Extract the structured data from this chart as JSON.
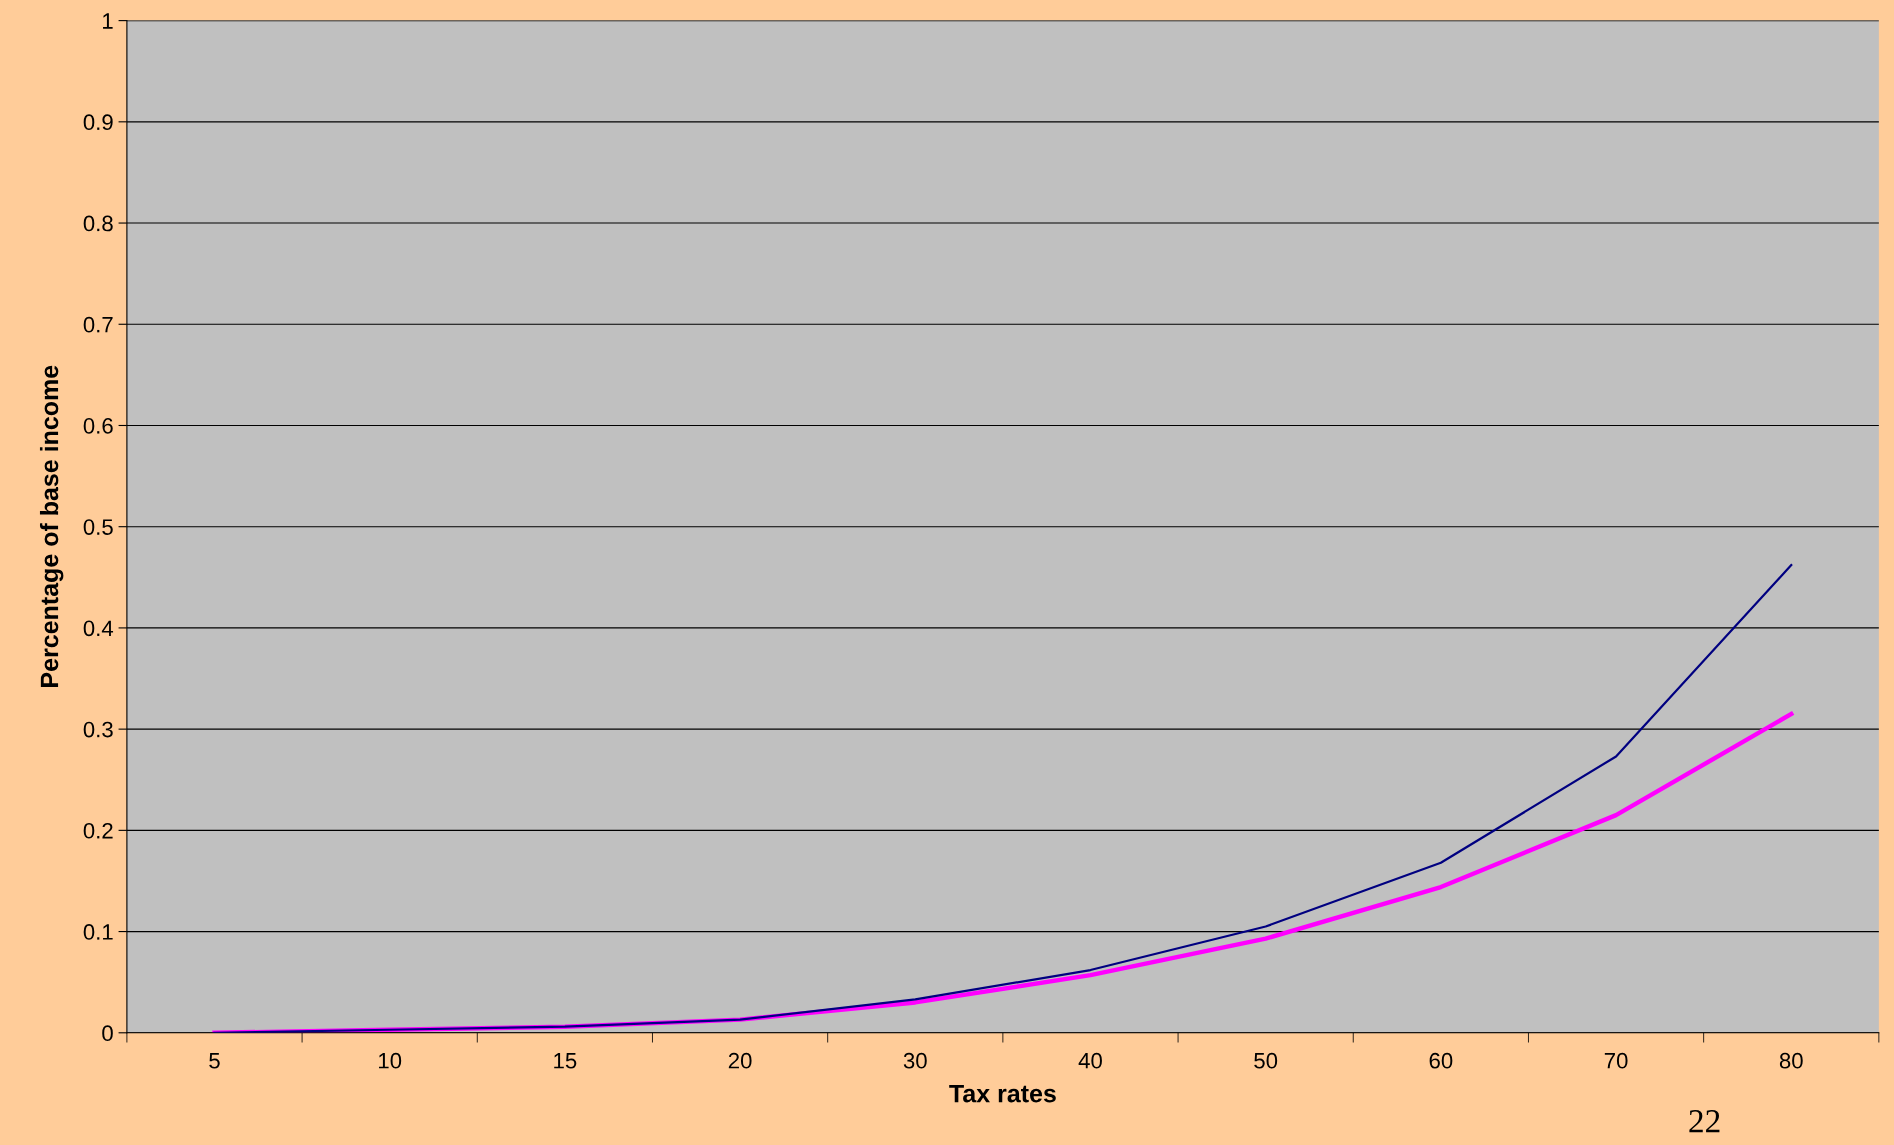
{
  "chart_data": {
    "type": "line",
    "xlabel": "Tax rates",
    "ylabel": "Percentage of base income",
    "categories": [
      "5",
      "10",
      "15",
      "20",
      "30",
      "40",
      "50",
      "60",
      "70",
      "80"
    ],
    "series": [
      {
        "color": "#000080",
        "values": [
          0,
          0.003,
          0.006,
          0.013,
          0.033,
          0.062,
          0.105,
          0.168,
          0.273,
          0.462
        ]
      },
      {
        "color": "#ff00ff",
        "values": [
          0,
          0.003,
          0.006,
          0.013,
          0.03,
          0.057,
          0.093,
          0.144,
          0.215,
          0.315
        ]
      }
    ],
    "ylim": [
      0,
      1
    ],
    "yticks": [
      0,
      0.1,
      0.2,
      0.3,
      0.4,
      0.5,
      0.6,
      0.7,
      0.8,
      0.9,
      1
    ],
    "grid": "y",
    "marker": "none",
    "line_style": "solid",
    "annotations": [
      "22"
    ]
  }
}
